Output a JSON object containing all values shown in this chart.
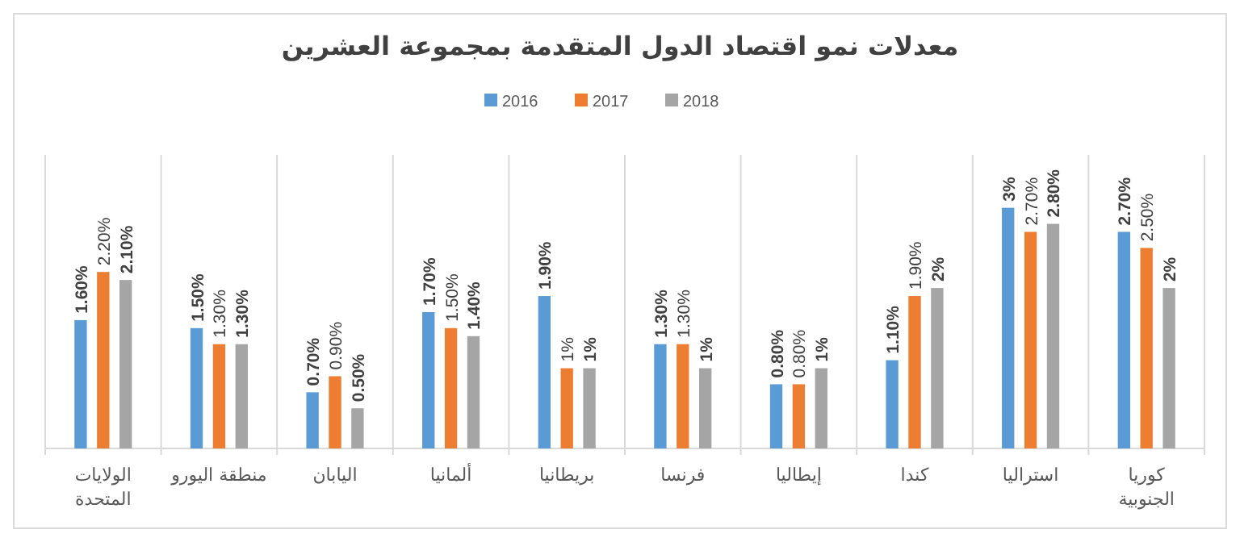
{
  "chart_data": {
    "type": "bar",
    "title": "معدلات نمو اقتصاد الدول المتقدمة بمجموعة العشرين",
    "categories": [
      "الولايات المتحدة",
      "منطقة اليورو",
      "اليابان",
      "ألمانيا",
      "بريطانيا",
      "فرنسا",
      "إيطاليا",
      "كندا",
      "استراليا",
      "كوريا الجنوبية"
    ],
    "series": [
      {
        "name": "2016",
        "color": "#5b9bd5",
        "values": [
          1.6,
          1.5,
          0.7,
          1.7,
          1.9,
          1.3,
          0.8,
          1.1,
          3,
          2.7
        ],
        "value_labels": [
          "1.60%",
          "1.50%",
          "0.70%",
          "1.70%",
          "1.90%",
          "1.30%",
          "0.80%",
          "1.10%",
          "3%",
          "2.70%"
        ]
      },
      {
        "name": "2017",
        "color": "#ed7d31",
        "values": [
          2.2,
          1.3,
          0.9,
          1.5,
          1,
          1.3,
          0.8,
          1.9,
          2.7,
          2.5
        ],
        "value_labels": [
          "2.20%",
          "1.30%",
          "0.90%",
          "1.50%",
          "1%",
          "1.30%",
          "0.80%",
          "1.90%",
          "2.70%",
          "2.50%"
        ]
      },
      {
        "name": "2018",
        "color": "#a5a5a5",
        "values": [
          2.1,
          1.3,
          0.5,
          1.4,
          1,
          1,
          1,
          2,
          2.8,
          2
        ],
        "value_labels": [
          "2.10%",
          "1.30%",
          "0.50%",
          "1.40%",
          "1%",
          "1%",
          "1%",
          "2%",
          "2.80%",
          "2%"
        ]
      }
    ],
    "grid": "x",
    "legend": "top"
  }
}
